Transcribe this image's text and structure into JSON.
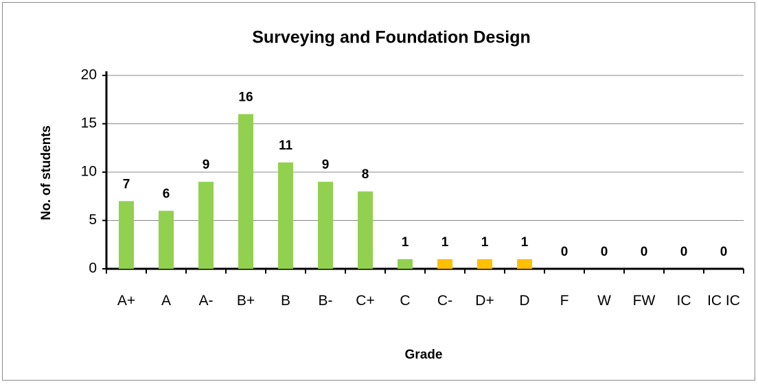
{
  "chart_data": {
    "type": "bar",
    "title": "Surveying and Foundation Design",
    "x_label": "Grade",
    "y_label": "No. of students",
    "categories": [
      "A+",
      "A",
      "A-",
      "B+",
      "B",
      "B-",
      "C+",
      "C",
      "C-",
      "D+",
      "D",
      "F",
      "W",
      "FW",
      "IC",
      "IC IC"
    ],
    "values": [
      7,
      6,
      9,
      16,
      11,
      9,
      8,
      1,
      1,
      1,
      1,
      0,
      0,
      0,
      0,
      0
    ],
    "colors": [
      "#92d050",
      "#92d050",
      "#92d050",
      "#92d050",
      "#92d050",
      "#92d050",
      "#92d050",
      "#92d050",
      "#ffc000",
      "#ffc000",
      "#ffc000",
      "#92d050",
      "#92d050",
      "#92d050",
      "#92d050",
      "#92d050"
    ],
    "ylim": [
      0,
      20
    ],
    "yticks": [
      0,
      5,
      10,
      15,
      20
    ],
    "grid": true
  }
}
